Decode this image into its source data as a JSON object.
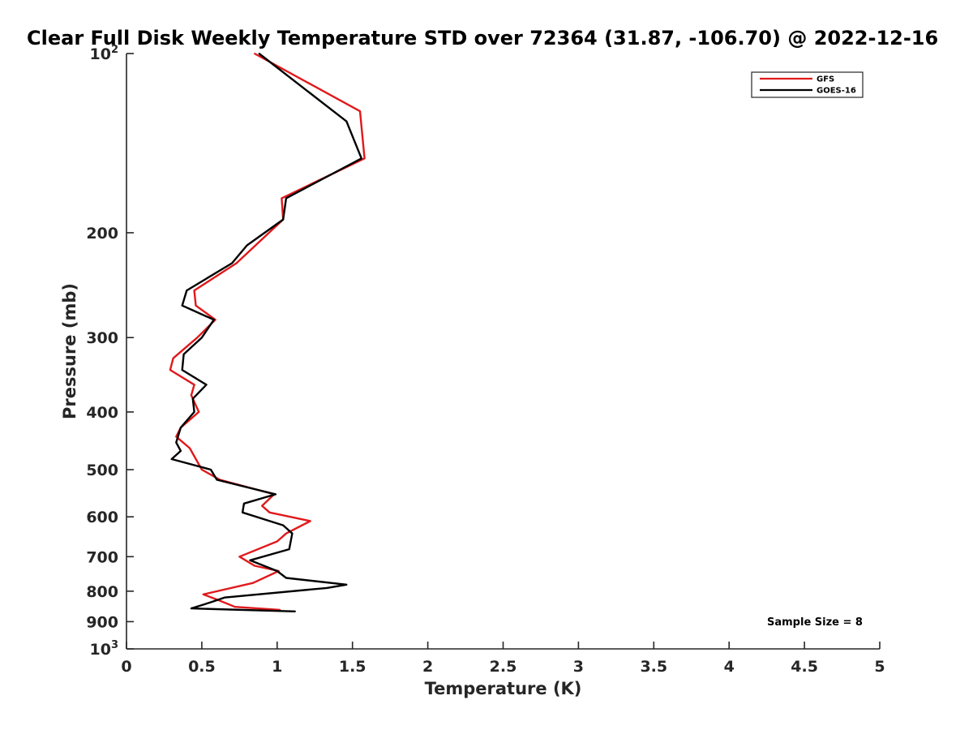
{
  "chart_data": {
    "type": "line",
    "title": "Clear Full Disk Weekly Temperature STD over 72364 (31.87, -106.70) @ 2022-12-16",
    "xlabel": "Temperature (K)",
    "ylabel": "Pressure (mb)",
    "xlim": [
      0,
      5
    ],
    "ylim": [
      100,
      1000
    ],
    "y_scale": "log",
    "y_reversed": true,
    "grid": false,
    "legend_position": "top-right",
    "x_ticks": [
      "0",
      "0.5",
      "1",
      "1.5",
      "2",
      "2.5",
      "3",
      "3.5",
      "4",
      "4.5",
      "5"
    ],
    "y_ticks": [
      {
        "value": 100,
        "base": "10",
        "exp": "2"
      },
      {
        "value": 200,
        "label": "200"
      },
      {
        "value": 300,
        "label": "300"
      },
      {
        "value": 400,
        "label": "400"
      },
      {
        "value": 500,
        "label": "500"
      },
      {
        "value": 600,
        "label": "600"
      },
      {
        "value": 700,
        "label": "700"
      },
      {
        "value": 800,
        "label": "800"
      },
      {
        "value": 900,
        "label": "900"
      },
      {
        "value": 1000,
        "base": "10",
        "exp": "3"
      }
    ],
    "annotation": "Sample Size = 8",
    "series": [
      {
        "name": "GFS",
        "color": "#e0191b",
        "points": [
          [
            0.85,
            100
          ],
          [
            1.55,
            125
          ],
          [
            1.58,
            150
          ],
          [
            1.03,
            175
          ],
          [
            1.04,
            190
          ],
          [
            0.73,
            225
          ],
          [
            0.45,
            250
          ],
          [
            0.46,
            265
          ],
          [
            0.59,
            280
          ],
          [
            0.47,
            300
          ],
          [
            0.31,
            325
          ],
          [
            0.29,
            340
          ],
          [
            0.45,
            360
          ],
          [
            0.43,
            375
          ],
          [
            0.48,
            400
          ],
          [
            0.36,
            425
          ],
          [
            0.33,
            440
          ],
          [
            0.42,
            460
          ],
          [
            0.5,
            500
          ],
          [
            0.62,
            520
          ],
          [
            0.98,
            550
          ],
          [
            0.9,
            575
          ],
          [
            0.95,
            590
          ],
          [
            1.22,
            610
          ],
          [
            1.06,
            640
          ],
          [
            1.0,
            660
          ],
          [
            0.75,
            700
          ],
          [
            0.85,
            725
          ],
          [
            1.01,
            740
          ],
          [
            0.84,
            775
          ],
          [
            0.51,
            810
          ],
          [
            0.62,
            830
          ],
          [
            0.72,
            850
          ],
          [
            1.02,
            860
          ]
        ]
      },
      {
        "name": "GOES-16",
        "color": "#000000",
        "points": [
          [
            0.88,
            100
          ],
          [
            1.46,
            130
          ],
          [
            1.56,
            150
          ],
          [
            1.06,
            175
          ],
          [
            1.04,
            190
          ],
          [
            0.8,
            210
          ],
          [
            0.7,
            225
          ],
          [
            0.4,
            250
          ],
          [
            0.37,
            265
          ],
          [
            0.58,
            280
          ],
          [
            0.5,
            300
          ],
          [
            0.38,
            320
          ],
          [
            0.37,
            340
          ],
          [
            0.53,
            360
          ],
          [
            0.44,
            380
          ],
          [
            0.45,
            400
          ],
          [
            0.36,
            425
          ],
          [
            0.33,
            450
          ],
          [
            0.36,
            465
          ],
          [
            0.3,
            480
          ],
          [
            0.56,
            500
          ],
          [
            0.6,
            520
          ],
          [
            0.99,
            550
          ],
          [
            0.78,
            570
          ],
          [
            0.77,
            590
          ],
          [
            1.04,
            620
          ],
          [
            1.1,
            640
          ],
          [
            1.08,
            680
          ],
          [
            0.82,
            710
          ],
          [
            1.0,
            740
          ],
          [
            1.06,
            760
          ],
          [
            1.46,
            780
          ],
          [
            1.33,
            790
          ],
          [
            0.65,
            820
          ],
          [
            0.56,
            835
          ],
          [
            0.43,
            855
          ],
          [
            1.12,
            865
          ]
        ]
      }
    ]
  }
}
